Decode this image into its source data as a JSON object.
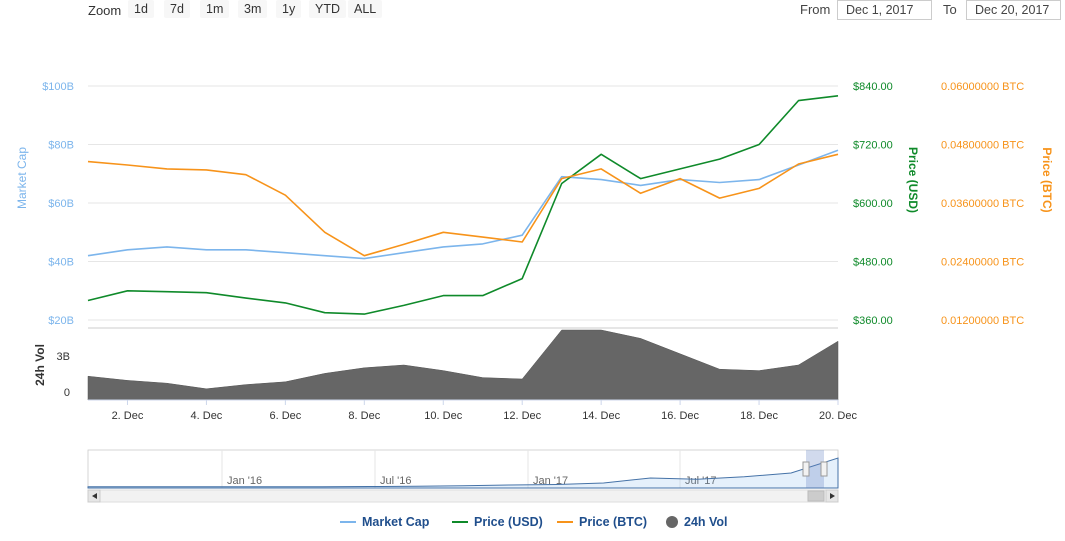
{
  "toolbar": {
    "zoom_label": "Zoom",
    "zoom_buttons": [
      "1d",
      "7d",
      "1m",
      "3m",
      "1y",
      "YTD",
      "ALL"
    ],
    "from_label": "From",
    "from_value": "Dec 1, 2017",
    "to_label": "To",
    "to_value": "Dec 20, 2017"
  },
  "colors": {
    "market_cap": "#7cb5ec",
    "price_usd": "#0f8a2a",
    "price_btc": "#f7931a",
    "volume": "#666666"
  },
  "chart_data": [
    {
      "type": "line",
      "x": [
        "Dec 1",
        "Dec 2",
        "Dec 3",
        "Dec 4",
        "Dec 5",
        "Dec 6",
        "Dec 7",
        "Dec 8",
        "Dec 9",
        "Dec 10",
        "Dec 11",
        "Dec 12",
        "Dec 13",
        "Dec 14",
        "Dec 15",
        "Dec 16",
        "Dec 17",
        "Dec 18",
        "Dec 19",
        "Dec 20"
      ],
      "x_ticks": [
        "2. Dec",
        "4. Dec",
        "6. Dec",
        "8. Dec",
        "10. Dec",
        "12. Dec",
        "14. Dec",
        "16. Dec",
        "18. Dec",
        "20. Dec"
      ],
      "series": [
        {
          "name": "Market Cap",
          "axis": "Market Cap",
          "values": [
            42,
            44,
            45,
            44,
            44,
            43,
            42,
            41,
            43,
            45,
            46,
            49,
            69,
            68,
            66,
            68,
            67,
            68,
            73,
            78
          ]
        },
        {
          "name": "Price (USD)",
          "axis": "Price (USD)",
          "values": [
            400,
            420,
            418,
            416,
            405,
            395,
            375,
            372,
            390,
            410,
            410,
            445,
            640,
            700,
            650,
            670,
            690,
            720,
            810,
            820
          ]
        },
        {
          "name": "Price (BTC)",
          "axis": "Price (BTC)",
          "values": [
            0.0445,
            0.0438,
            0.043,
            0.0428,
            0.0418,
            0.0376,
            0.03,
            0.0252,
            0.0275,
            0.03,
            0.029,
            0.028,
            0.041,
            0.043,
            0.038,
            0.041,
            0.037,
            0.039,
            0.044,
            0.046
          ]
        }
      ],
      "y_axes": [
        {
          "title": "Market Cap",
          "ticks": [
            "$20B",
            "$40B",
            "$60B",
            "$80B",
            "$100B"
          ],
          "range": [
            20,
            100
          ]
        },
        {
          "title": "Price (USD)",
          "ticks": [
            "$360.00",
            "$480.00",
            "$600.00",
            "$720.00",
            "$840.00"
          ],
          "range": [
            360,
            840
          ]
        },
        {
          "title": "Price (BTC)",
          "ticks": [
            "0.01200000 BTC",
            "0.02400000 BTC",
            "0.03600000 BTC",
            "0.04800000 BTC",
            "0.06000000 BTC"
          ],
          "range": [
            0.012,
            0.06
          ]
        }
      ],
      "grid": true
    },
    {
      "type": "area",
      "name": "24h Vol",
      "ylabel": "24h Vol",
      "ticks": [
        "0",
        "3B"
      ],
      "range": [
        0,
        5
      ],
      "values": [
        1.7,
        1.4,
        1.2,
        0.8,
        1.1,
        1.3,
        1.9,
        2.3,
        2.5,
        2.1,
        1.6,
        1.5,
        5.0,
        5.0,
        4.4,
        3.3,
        2.2,
        2.1,
        2.5,
        4.2
      ]
    },
    {
      "type": "area",
      "name": "navigator",
      "x_ticks": [
        "Jan '16",
        "Jul '16",
        "Jan '17",
        "Jul '17"
      ],
      "values": [
        5,
        5,
        5,
        5,
        5,
        5,
        6,
        7,
        9,
        12,
        14,
        20,
        40,
        35,
        45,
        60,
        120
      ]
    }
  ],
  "legend": [
    {
      "label": "Market Cap"
    },
    {
      "label": "Price (USD)"
    },
    {
      "label": "Price (BTC)"
    },
    {
      "label": "24h Vol"
    }
  ]
}
